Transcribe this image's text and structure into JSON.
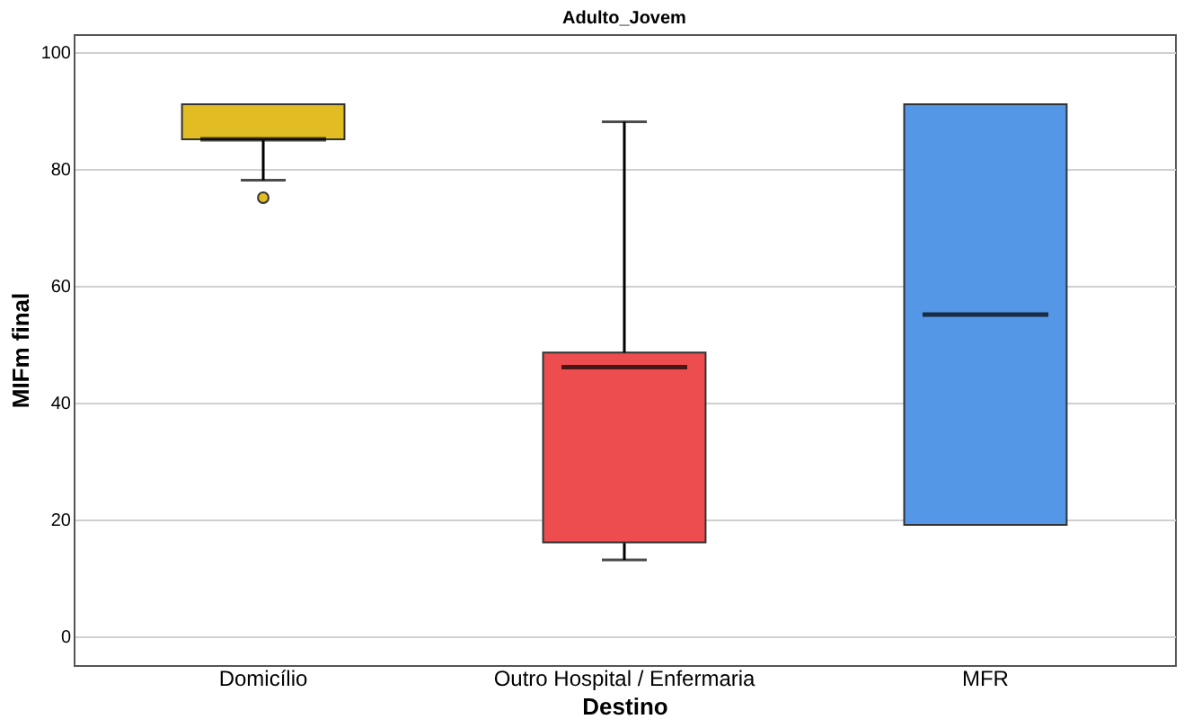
{
  "chart_data": {
    "type": "box",
    "title": "Adulto_Jovem",
    "xlabel": "Destino",
    "ylabel": "MIFm final",
    "categories": [
      "Domicílio",
      "Outro Hospital / Enfermaria",
      "MFR"
    ],
    "colors": [
      "#e1bc22",
      "#ed4d4f",
      "#5497e6"
    ],
    "boxes": [
      {
        "low": 78,
        "q1": 85,
        "median": 85,
        "q3": 91,
        "high": 91,
        "outliers": [
          75
        ]
      },
      {
        "low": 13,
        "q1": 16,
        "median": 46,
        "q3": 48.5,
        "high": 88
      },
      {
        "low": 19,
        "q1": 19,
        "median": 55,
        "q3": 91,
        "high": 91
      }
    ],
    "ylim": [
      -5,
      103
    ],
    "yticks": [
      0,
      20,
      40,
      60,
      80,
      100
    ],
    "grid": "y"
  }
}
